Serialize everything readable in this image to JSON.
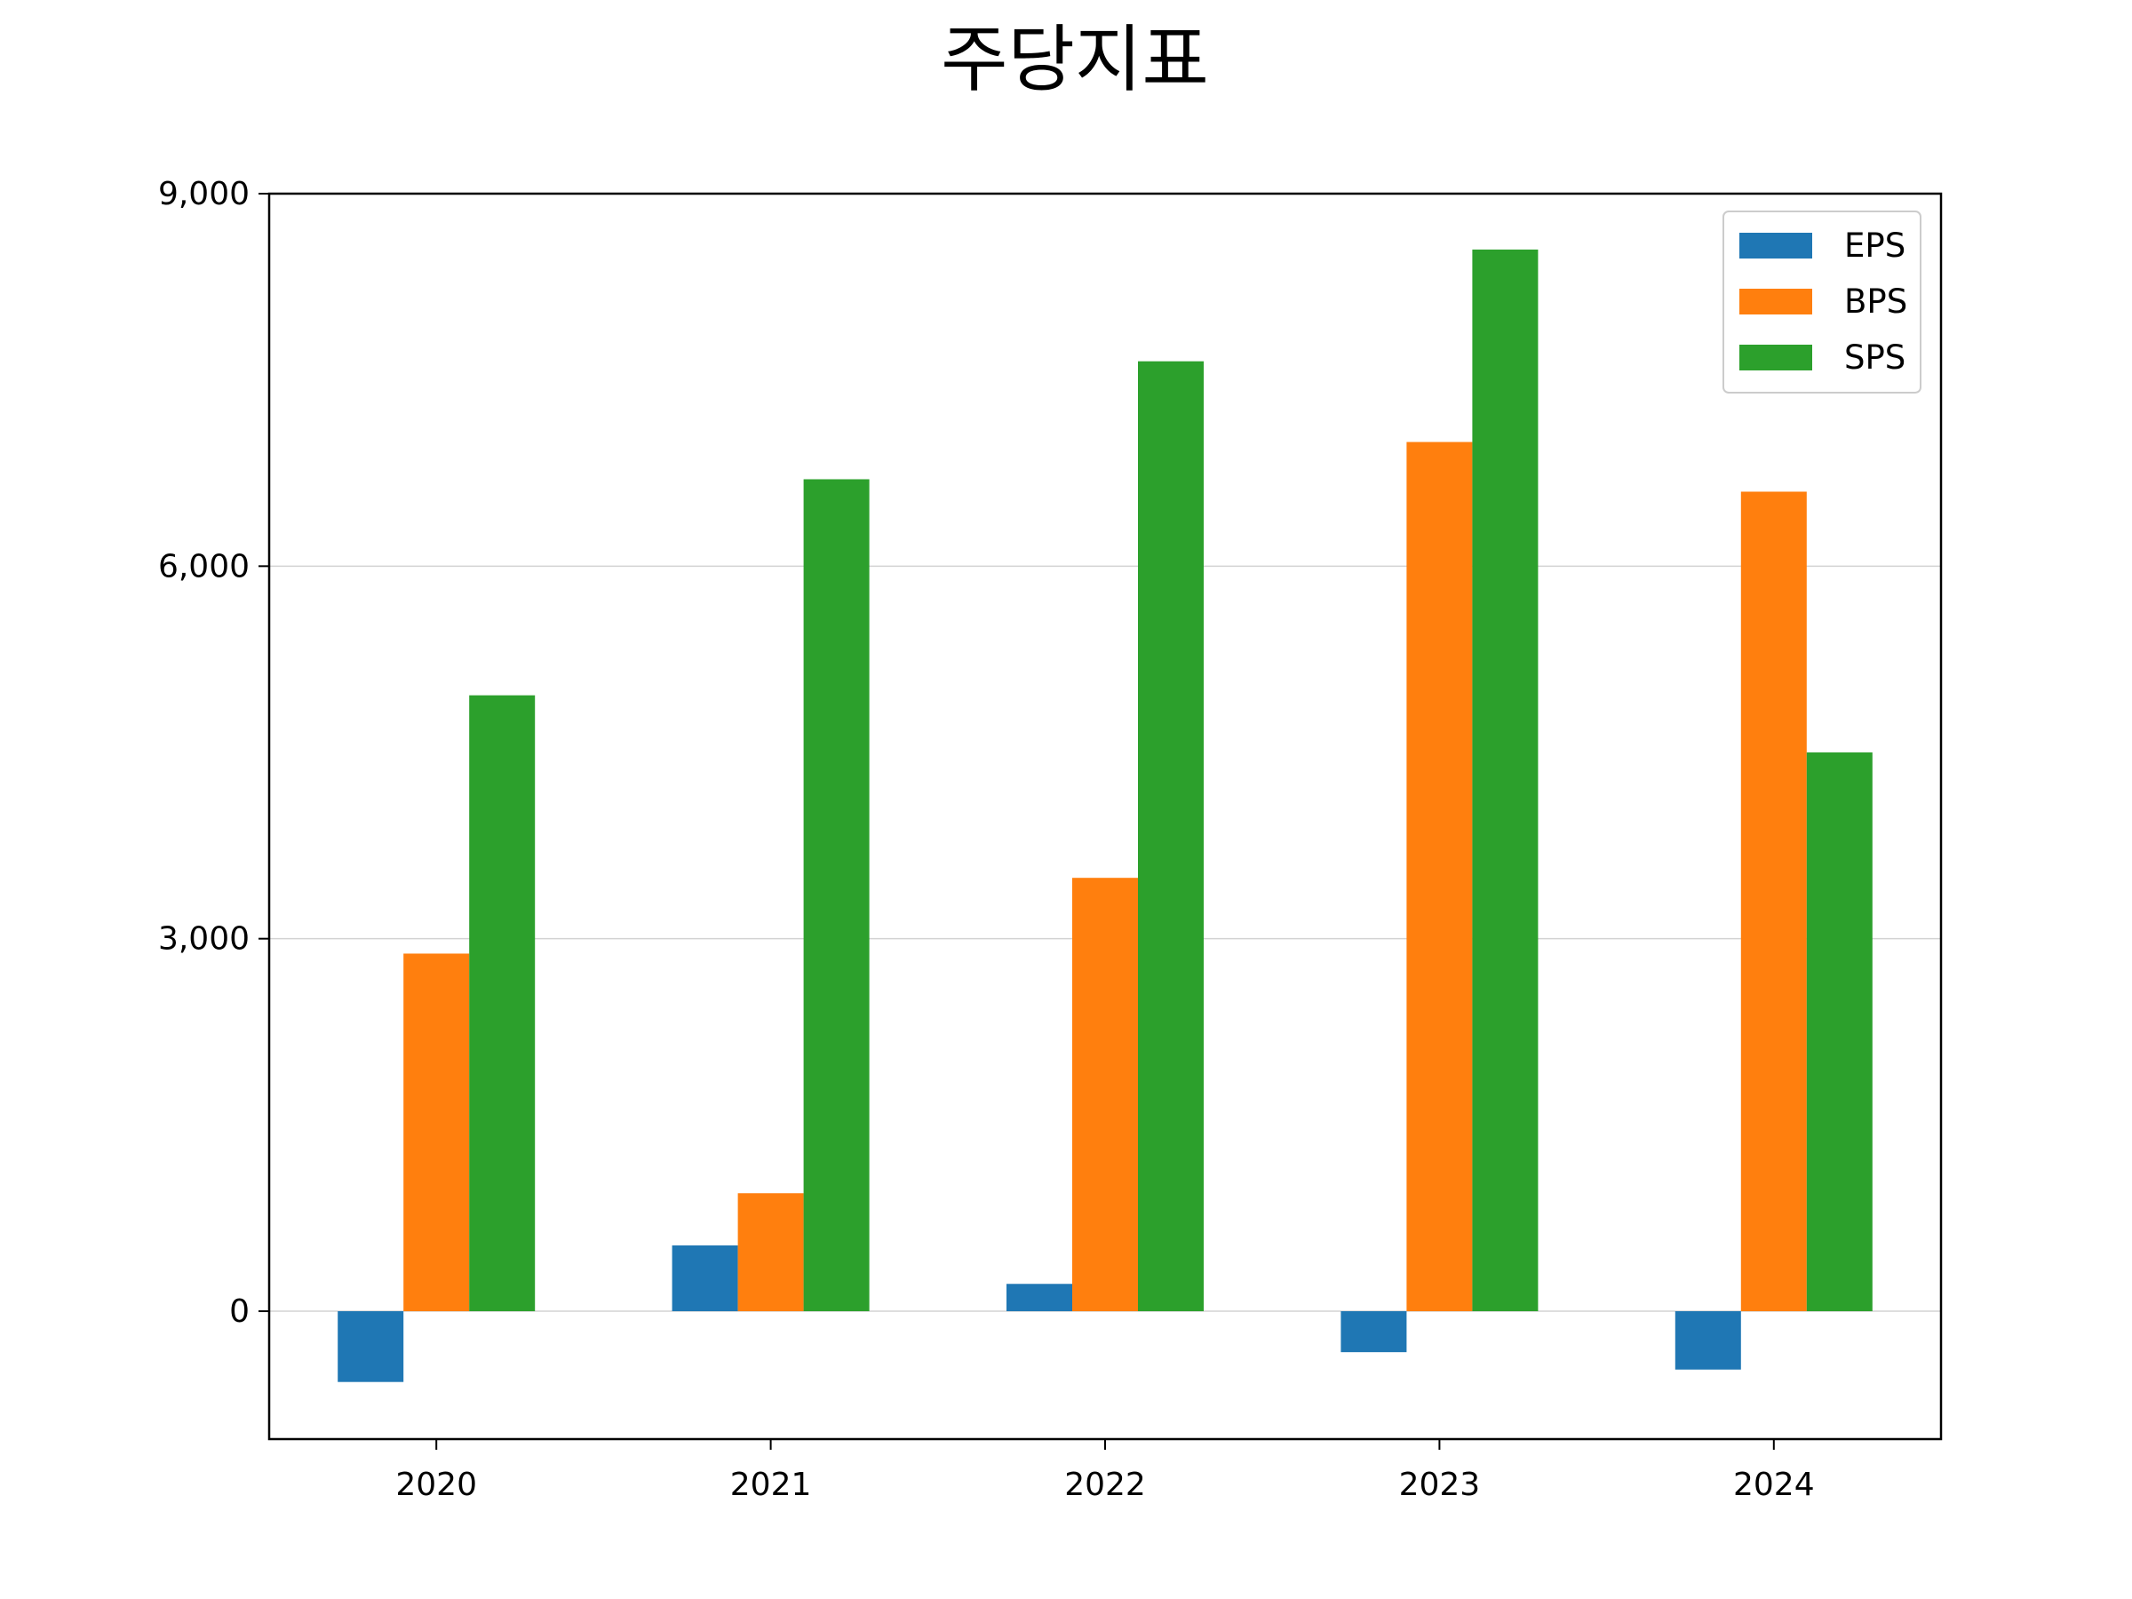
{
  "chart_data": {
    "type": "bar",
    "title": "주당지표",
    "xlabel": "",
    "ylabel": "",
    "categories": [
      "2020",
      "2021",
      "2022",
      "2023",
      "2024"
    ],
    "series": [
      {
        "name": "EPS",
        "color": "#1f77b4",
        "values": [
          -570,
          530,
          220,
          -330,
          -470
        ]
      },
      {
        "name": "BPS",
        "color": "#ff7f0e",
        "values": [
          2880,
          950,
          3490,
          7000,
          6600
        ]
      },
      {
        "name": "SPS",
        "color": "#2ca02c",
        "values": [
          4960,
          6700,
          7650,
          8550,
          4500
        ]
      }
    ],
    "ylim": [
      -1030,
      9000
    ],
    "yticks": [
      0,
      3000,
      6000,
      9000
    ],
    "ytick_labels": [
      "0",
      "3,000",
      "6,000",
      "9,000"
    ],
    "grid": "horizontal",
    "legend_position": "top-right"
  }
}
